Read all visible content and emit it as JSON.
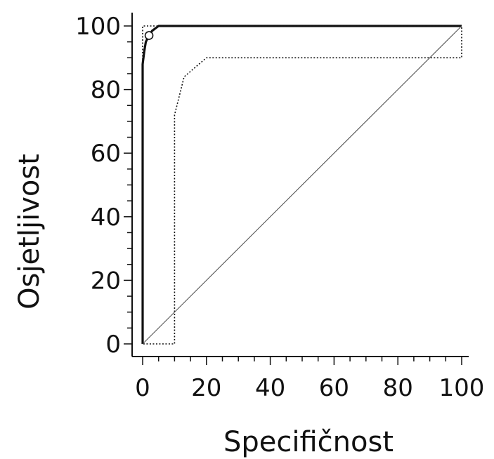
{
  "chart_data": {
    "type": "line",
    "title": "",
    "xlabel": "Specifičnost",
    "ylabel": "Osjetljivost",
    "xlim": [
      0,
      100
    ],
    "ylim": [
      0,
      100
    ],
    "x_ticks": [
      "0",
      "20",
      "40",
      "60",
      "80",
      "100"
    ],
    "y_ticks": [
      "0",
      "20",
      "40",
      "60",
      "80",
      "100"
    ],
    "grid": false,
    "legend": "none",
    "series": [
      {
        "style": "solid",
        "x": [
          0,
          0,
          0.5,
          1,
          2,
          3,
          5,
          100
        ],
        "y": [
          0,
          88,
          92,
          95,
          97,
          98.5,
          100,
          100
        ]
      },
      {
        "style": "dotted",
        "x": [
          0,
          0,
          3,
          100,
          100,
          20,
          13,
          10,
          10,
          0
        ],
        "y": [
          0,
          100,
          100,
          100,
          90,
          90,
          84,
          72,
          0,
          0
        ]
      },
      {
        "style": "thin",
        "x": [
          0,
          100
        ],
        "y": [
          0,
          100
        ]
      }
    ],
    "marker": {
      "x": 2,
      "y": 97,
      "shape": "open-circle"
    },
    "colors": {
      "line": "#111111",
      "diagonal": "#555555"
    }
  }
}
